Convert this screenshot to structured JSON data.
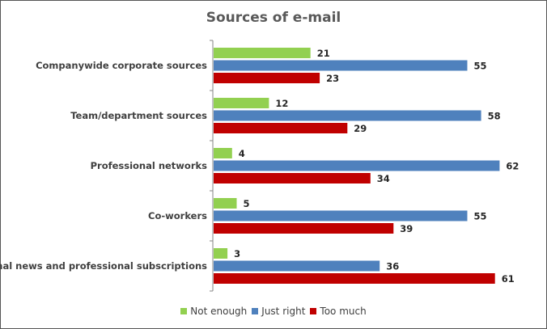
{
  "chart_data": {
    "type": "bar",
    "orientation": "horizontal",
    "title": "Sources of e-mail",
    "categories": [
      "Companywide corporate sources",
      "Team/department sources",
      "Professional networks",
      "Co-workers",
      "External news and professional subscriptions"
    ],
    "series": [
      {
        "name": "Not enough",
        "color": "#92d050",
        "values": [
          21,
          12,
          4,
          5,
          3
        ]
      },
      {
        "name": "Just right",
        "color": "#4f81bd",
        "values": [
          55,
          58,
          62,
          55,
          36
        ]
      },
      {
        "name": "Too much",
        "color": "#c00000",
        "values": [
          23,
          29,
          34,
          39,
          61
        ]
      }
    ],
    "xlim": [
      0,
      65
    ],
    "grid": false,
    "data_labels": true,
    "legend_position": "bottom"
  }
}
